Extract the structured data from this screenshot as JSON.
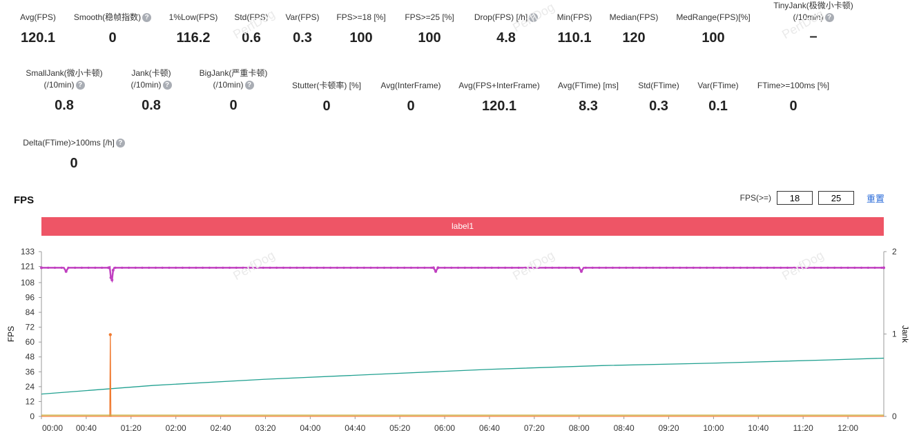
{
  "metrics_row1": [
    {
      "label": "Avg(FPS)",
      "value": "120.1",
      "help": false
    },
    {
      "label": "Smooth(稳帧指数)",
      "value": "0",
      "help": true
    },
    {
      "label": "1%Low(FPS)",
      "value": "116.2",
      "help": false
    },
    {
      "label": "Std(FPS)",
      "value": "0.6",
      "help": false
    },
    {
      "label": "Var(FPS)",
      "value": "0.3",
      "help": false
    },
    {
      "label": "FPS>=18 [%]",
      "value": "100",
      "help": false
    },
    {
      "label": "FPS>=25 [%]",
      "value": "100",
      "help": false
    },
    {
      "label": "Drop(FPS) [/h]",
      "value": "4.8",
      "help": true
    },
    {
      "label": "Min(FPS)",
      "value": "110.1",
      "help": false
    },
    {
      "label": "Median(FPS)",
      "value": "120",
      "help": false
    },
    {
      "label": "MedRange(FPS)[%]",
      "value": "100",
      "help": false
    },
    {
      "label": "TinyJank(极微小卡顿)",
      "label2": "(/10min)",
      "value": "–",
      "help": true
    }
  ],
  "metrics_row2": [
    {
      "label": "SmallJank(微小卡顿)",
      "label2": "(/10min)",
      "value": "0.8",
      "help": true
    },
    {
      "label": "Jank(卡顿)",
      "label2": "(/10min)",
      "value": "0.8",
      "help": true
    },
    {
      "label": "BigJank(严重卡顿)",
      "label2": "(/10min)",
      "value": "0",
      "help": true
    },
    {
      "label": "Stutter(卡顿率) [%]",
      "value": "0",
      "help": false
    },
    {
      "label": "Avg(InterFrame)",
      "value": "0",
      "help": false
    },
    {
      "label": "Avg(FPS+InterFrame)",
      "value": "120.1",
      "help": false
    },
    {
      "label": "Avg(FTime) [ms]",
      "value": "8.3",
      "help": false
    },
    {
      "label": "Std(FTime)",
      "value": "0.3",
      "help": false
    },
    {
      "label": "Var(FTime)",
      "value": "0.1",
      "help": false
    },
    {
      "label": "FTime>=100ms [%]",
      "value": "0",
      "help": false
    }
  ],
  "metrics_row3": [
    {
      "label": "Delta(FTime)>100ms [/h]",
      "value": "0",
      "help": true
    }
  ],
  "section_title": "FPS",
  "fps_control": {
    "label": "FPS(>=)",
    "value1": "18",
    "value2": "25",
    "reset": "重置"
  },
  "label_bar": "label1",
  "watermark": "PerfDog",
  "chart_data": {
    "type": "line",
    "xlabel": "",
    "ylabel": "FPS",
    "y2label": "Jank",
    "ylim": [
      0,
      133
    ],
    "y2lim": [
      0,
      2
    ],
    "yticks": [
      0,
      12,
      24,
      36,
      48,
      60,
      72,
      84,
      96,
      108,
      121,
      133
    ],
    "y2ticks": [
      0,
      1,
      2
    ],
    "xlim_seconds": [
      0,
      752
    ],
    "xticks": [
      "00:00",
      "00:40",
      "01:20",
      "02:00",
      "02:40",
      "03:20",
      "04:00",
      "04:40",
      "05:20",
      "06:00",
      "06:40",
      "07:20",
      "08:00",
      "08:40",
      "09:20",
      "10:00",
      "10:40",
      "11:20",
      "12:00"
    ],
    "colors": {
      "fps": "#c040c0",
      "trend": "#20a090",
      "spike": "#f07a30",
      "base": "#c8b040",
      "axis": "#999999"
    },
    "series": [
      {
        "key": "fps",
        "points": [
          [
            0,
            120
          ],
          [
            20,
            120
          ],
          [
            22,
            117
          ],
          [
            24,
            120
          ],
          [
            60,
            120
          ],
          [
            61,
            120.5
          ],
          [
            62,
            112
          ],
          [
            63,
            110.1
          ],
          [
            64,
            118
          ],
          [
            65,
            120
          ],
          [
            350,
            120
          ],
          [
            352,
            117
          ],
          [
            354,
            120
          ],
          [
            480,
            120
          ],
          [
            482,
            117
          ],
          [
            484,
            120
          ],
          [
            752,
            120
          ]
        ]
      },
      {
        "key": "trend",
        "points": [
          [
            0,
            18
          ],
          [
            100,
            25
          ],
          [
            200,
            30
          ],
          [
            300,
            34
          ],
          [
            400,
            38
          ],
          [
            500,
            41
          ],
          [
            600,
            43
          ],
          [
            700,
            45.5
          ],
          [
            752,
            47
          ]
        ]
      },
      {
        "key": "spike",
        "points": [
          [
            0,
            0
          ],
          [
            60,
            0
          ],
          [
            61,
            0
          ],
          [
            61.5,
            66
          ],
          [
            62,
            0
          ],
          [
            752,
            0
          ]
        ]
      },
      {
        "key": "base",
        "points": [
          [
            0,
            1
          ],
          [
            752,
            1
          ]
        ]
      }
    ]
  }
}
